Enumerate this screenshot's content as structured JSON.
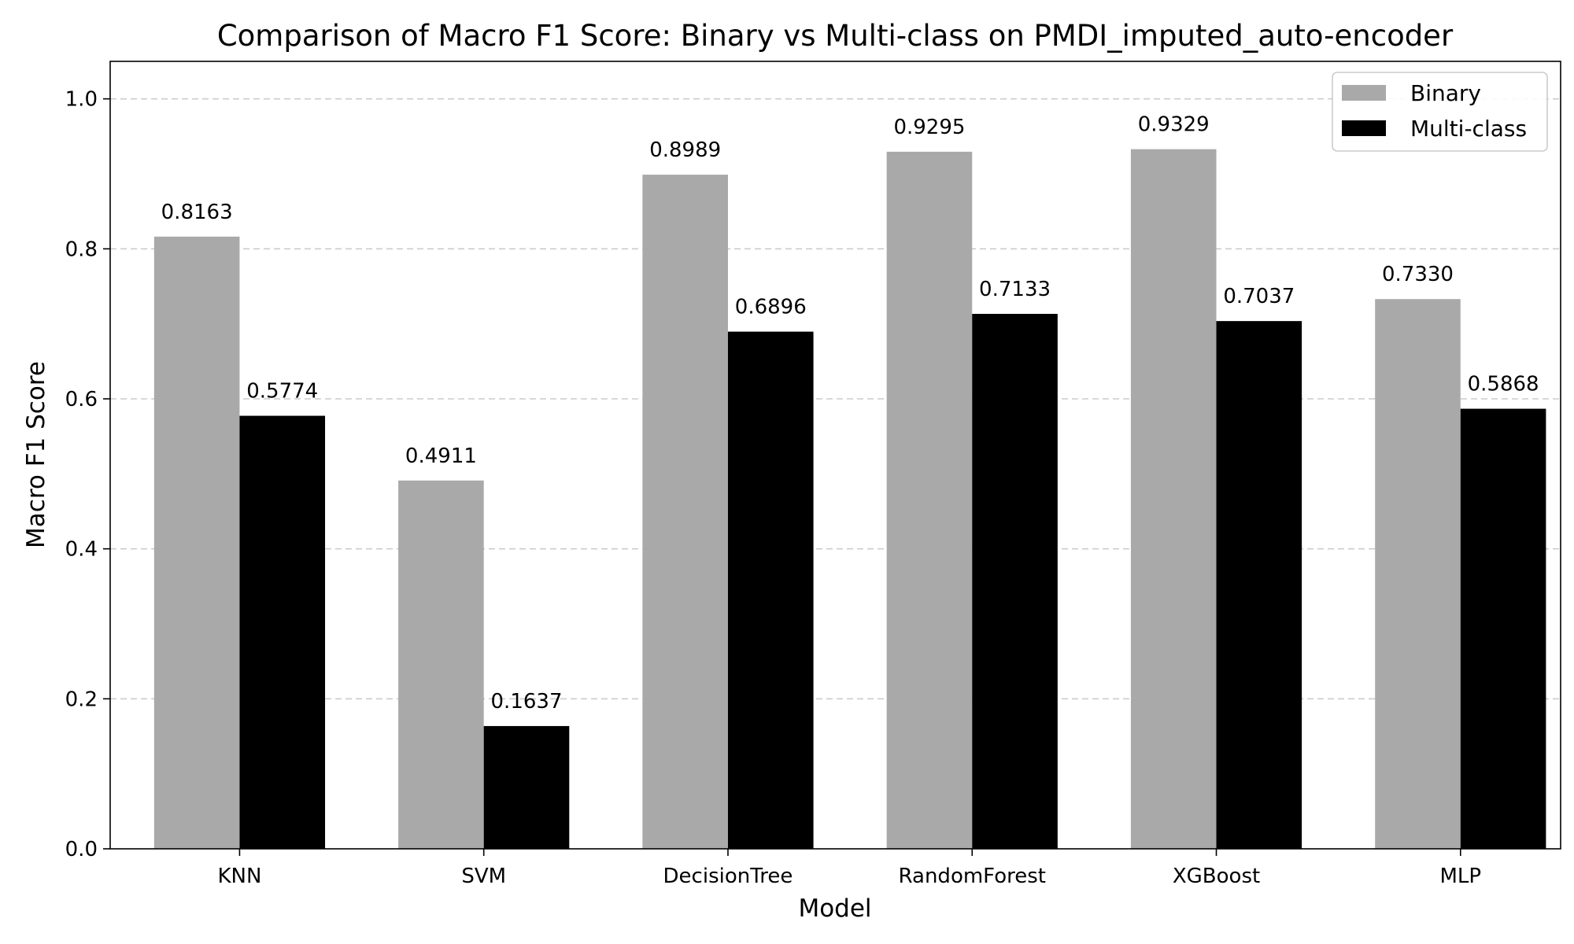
{
  "chart_data": {
    "type": "bar",
    "title": "Comparison of Macro F1 Score: Binary vs Multi-class on PMDI_imputed_auto-encoder",
    "xlabel": "Model",
    "ylabel": "Macro F1 Score",
    "categories": [
      "KNN",
      "SVM",
      "DecisionTree",
      "RandomForest",
      "XGBoost",
      "MLP"
    ],
    "series": [
      {
        "name": "Binary",
        "color": "#a9a9a9",
        "values": [
          0.8163,
          0.4911,
          0.8989,
          0.9295,
          0.9329,
          0.733
        ],
        "labels": [
          "0.8163",
          "0.4911",
          "0.8989",
          "0.9295",
          "0.9329",
          "0.7330"
        ]
      },
      {
        "name": "Multi-class",
        "color": "#000000",
        "values": [
          0.5774,
          0.1637,
          0.6896,
          0.7133,
          0.7037,
          0.5868
        ],
        "labels": [
          "0.5774",
          "0.1637",
          "0.6896",
          "0.7133",
          "0.7037",
          "0.5868"
        ]
      }
    ],
    "ylim": [
      0,
      1.05
    ],
    "yticks": [
      "0.0",
      "0.2",
      "0.4",
      "0.6",
      "0.8",
      "1.0"
    ],
    "grid": "y-dashed",
    "legend": "top-right"
  }
}
